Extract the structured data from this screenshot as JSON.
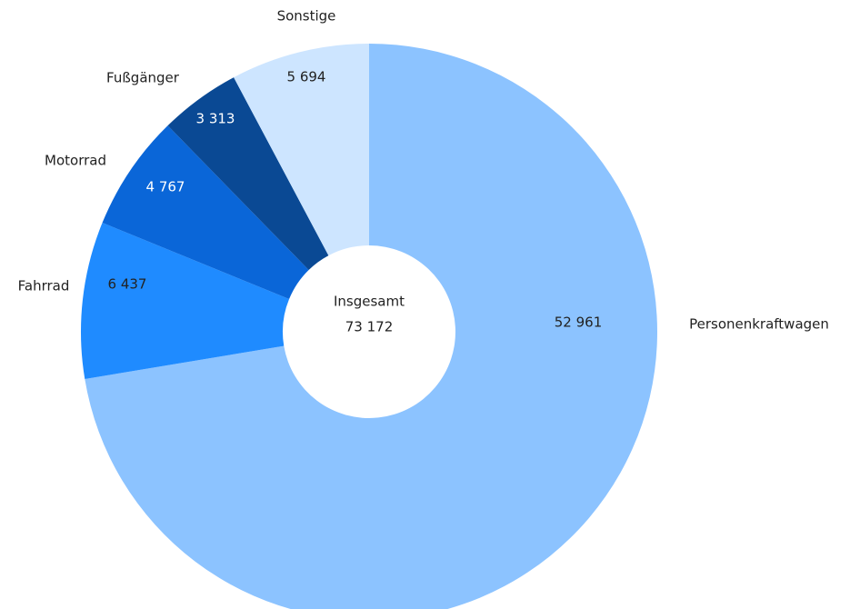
{
  "chart_data": {
    "type": "donut",
    "categories": [
      "Personenkraftwagen",
      "Fahrrad",
      "Motorrad",
      "Fußgänger",
      "Sonstige"
    ],
    "values": [
      52961,
      6437,
      4767,
      3313,
      5694
    ],
    "value_labels": [
      "52 961",
      "6 437",
      "4 767",
      "3 313",
      "5 694"
    ],
    "colors": [
      "#8cc3ff",
      "#1f8bff",
      "#0a66d8",
      "#0a4994",
      "#cde5ff"
    ],
    "center": {
      "text": "Insgesamt",
      "total": {
        "value": 73172,
        "label": "73 172"
      }
    }
  }
}
